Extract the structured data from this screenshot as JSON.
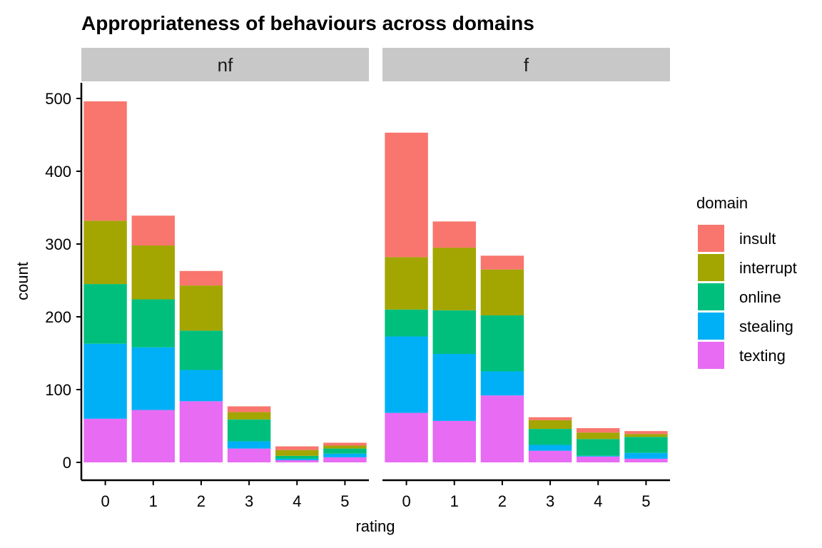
{
  "chart_data": {
    "type": "bar",
    "stacked": true,
    "title": "Appropriateness of behaviours across domains",
    "xlabel": "rating",
    "ylabel": "count",
    "ylim": [
      0,
      520
    ],
    "yticks": [
      0,
      100,
      200,
      300,
      400,
      500
    ],
    "categories": [
      "0",
      "1",
      "2",
      "3",
      "4",
      "5"
    ],
    "grid": false,
    "legend": {
      "title": "domain",
      "position": "right",
      "entries": [
        "insult",
        "interrupt",
        "online",
        "stealing",
        "texting"
      ]
    },
    "colors": {
      "insult": "#F8766D",
      "interrupt": "#A3A500",
      "online": "#00BF7D",
      "stealing": "#00B0F6",
      "texting": "#E76BF3"
    },
    "panels": [
      {
        "label": "nf",
        "series": [
          {
            "name": "texting",
            "values": [
              60,
              72,
              84,
              19,
              3,
              7
            ]
          },
          {
            "name": "stealing",
            "values": [
              103,
              86,
              43,
              10,
              2,
              5
            ]
          },
          {
            "name": "online",
            "values": [
              82,
              66,
              54,
              30,
              4,
              7
            ]
          },
          {
            "name": "interrupt",
            "values": [
              87,
              74,
              62,
              10,
              8,
              4
            ]
          },
          {
            "name": "insult",
            "values": [
              164,
              41,
              20,
              8,
              5,
              4
            ]
          }
        ]
      },
      {
        "label": "f",
        "series": [
          {
            "name": "texting",
            "values": [
              68,
              57,
              92,
              16,
              8,
              5
            ]
          },
          {
            "name": "stealing",
            "values": [
              105,
              92,
              33,
              8,
              1,
              8
            ]
          },
          {
            "name": "online",
            "values": [
              37,
              60,
              77,
              22,
              23,
              22
            ]
          },
          {
            "name": "interrupt",
            "values": [
              72,
              86,
              63,
              12,
              9,
              4
            ]
          },
          {
            "name": "insult",
            "values": [
              171,
              36,
              19,
              4,
              6,
              4
            ]
          }
        ]
      }
    ]
  }
}
